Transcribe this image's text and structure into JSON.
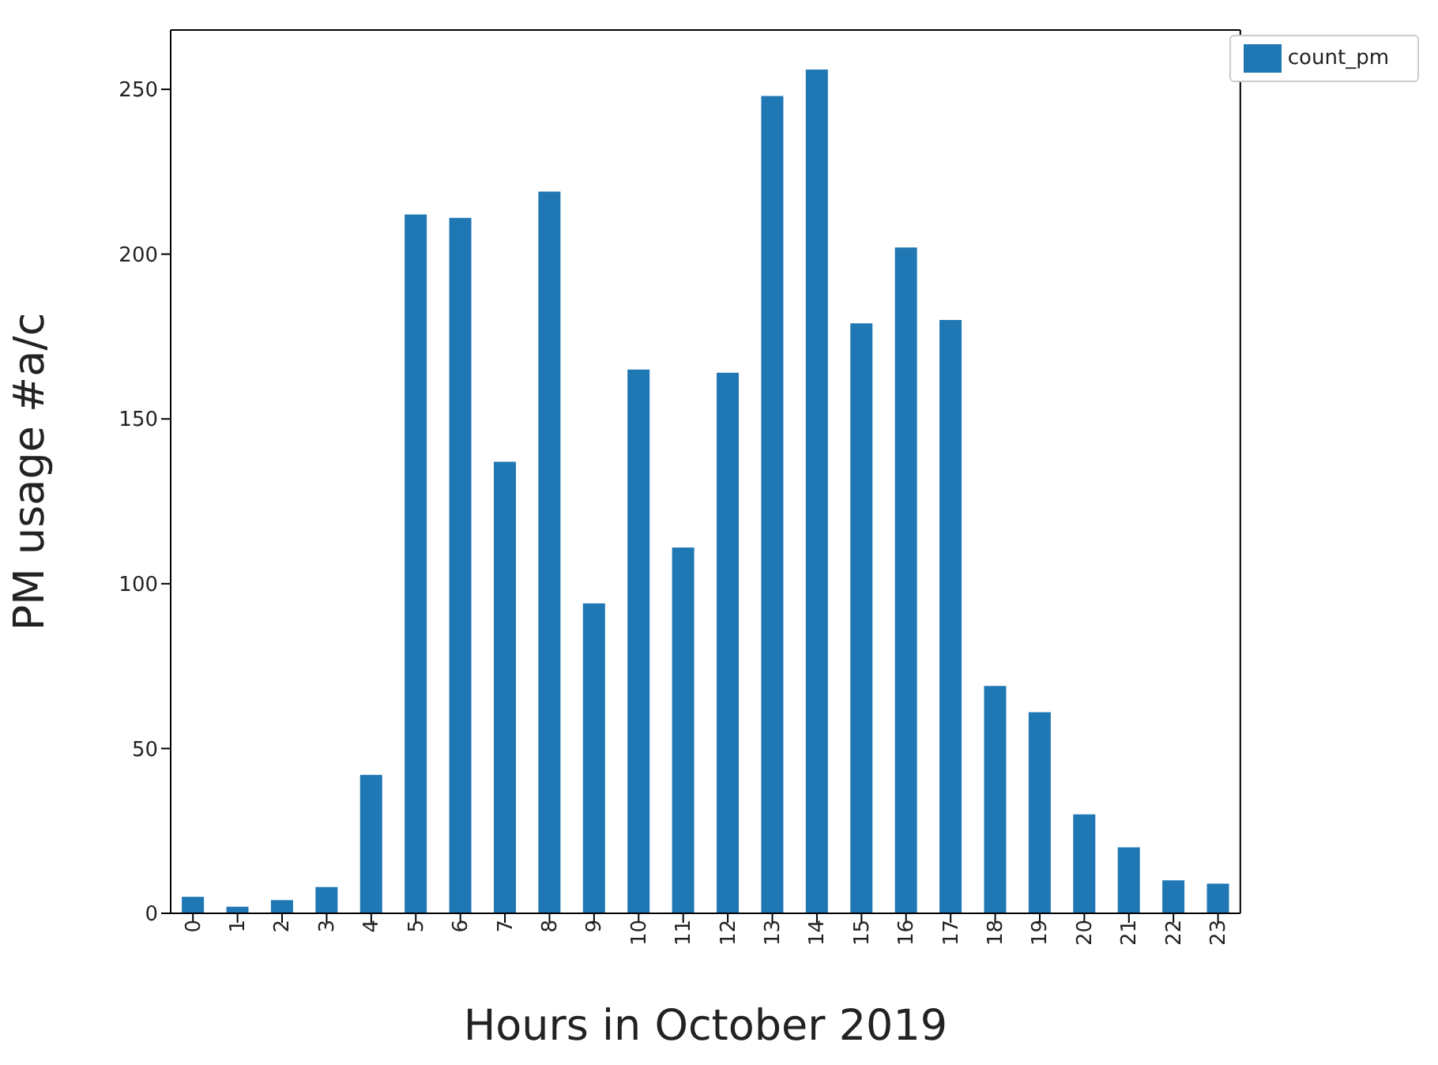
{
  "chart_data": {
    "type": "bar",
    "xlabel": "Hours in October 2019",
    "ylabel": "PM usage #a/c",
    "categories": [
      "0",
      "1",
      "2",
      "3",
      "4",
      "5",
      "6",
      "7",
      "8",
      "9",
      "10",
      "11",
      "12",
      "13",
      "14",
      "15",
      "16",
      "17",
      "18",
      "19",
      "20",
      "21",
      "22",
      "23"
    ],
    "series": [
      {
        "name": "count_pm",
        "color": "#1f77b4",
        "values": [
          5,
          2,
          4,
          8,
          42,
          212,
          211,
          137,
          219,
          94,
          165,
          111,
          164,
          248,
          256,
          179,
          202,
          180,
          69,
          61,
          30,
          20,
          10,
          9
        ]
      }
    ],
    "ylim": [
      0,
      268
    ],
    "yticks": [
      0,
      50,
      100,
      150,
      200,
      250
    ],
    "grid": false,
    "legend": "top right"
  }
}
